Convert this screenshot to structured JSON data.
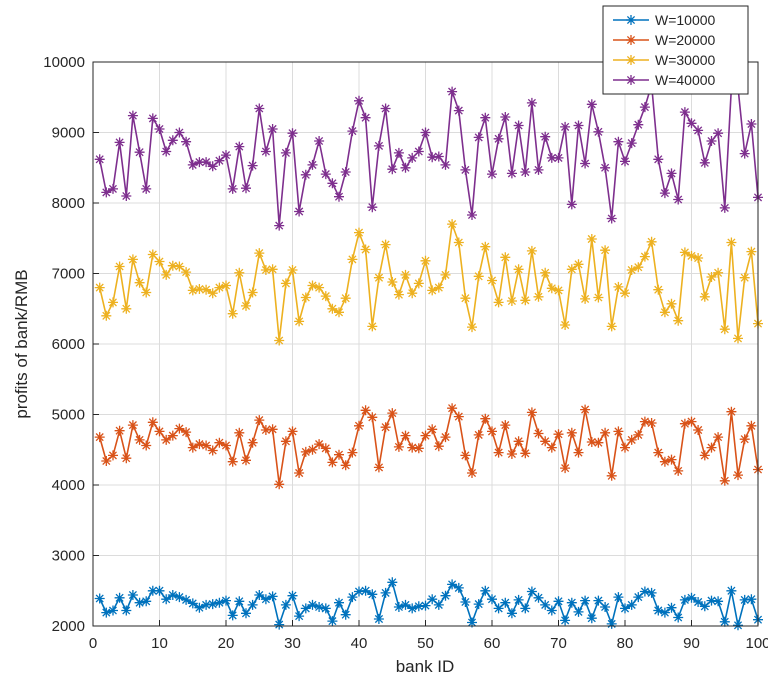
{
  "chart_data": {
    "type": "line",
    "title": "",
    "xlabel": "bank ID",
    "ylabel": "profits of bank/RMB",
    "xlim": [
      0,
      100
    ],
    "ylim": [
      2000,
      10000
    ],
    "xticks": [
      0,
      10,
      20,
      30,
      40,
      50,
      60,
      70,
      80,
      90,
      100
    ],
    "yticks": [
      2000,
      3000,
      4000,
      5000,
      6000,
      7000,
      8000,
      9000,
      10000
    ],
    "grid": true,
    "legend_position": "top-right",
    "marker": "asterisk",
    "x": [
      1,
      2,
      3,
      4,
      5,
      6,
      7,
      8,
      9,
      10,
      11,
      12,
      13,
      14,
      15,
      16,
      17,
      18,
      19,
      20,
      21,
      22,
      23,
      24,
      25,
      26,
      27,
      28,
      29,
      30,
      31,
      32,
      33,
      34,
      35,
      36,
      37,
      38,
      39,
      40,
      41,
      42,
      43,
      44,
      45,
      46,
      47,
      48,
      49,
      50,
      51,
      52,
      53,
      54,
      55,
      56,
      57,
      58,
      59,
      60,
      61,
      62,
      63,
      64,
      65,
      66,
      67,
      68,
      69,
      70,
      71,
      72,
      73,
      74,
      75,
      76,
      77,
      78,
      79,
      80,
      81,
      82,
      83,
      84,
      85,
      86,
      87,
      88,
      89,
      90,
      91,
      92,
      93,
      94,
      95,
      96,
      97,
      98,
      99,
      100
    ],
    "series": [
      {
        "name": "W=10000",
        "color": "#0072bd",
        "values": [
          2390,
          2190,
          2220,
          2400,
          2220,
          2440,
          2330,
          2350,
          2500,
          2500,
          2380,
          2440,
          2410,
          2370,
          2320,
          2260,
          2300,
          2310,
          2330,
          2360,
          2150,
          2350,
          2180,
          2300,
          2440,
          2380,
          2420,
          2020,
          2300,
          2430,
          2140,
          2250,
          2300,
          2270,
          2250,
          2070,
          2330,
          2160,
          2410,
          2490,
          2500,
          2450,
          2100,
          2470,
          2620,
          2270,
          2300,
          2250,
          2280,
          2290,
          2380,
          2300,
          2430,
          2590,
          2540,
          2340,
          2050,
          2310,
          2500,
          2380,
          2250,
          2330,
          2180,
          2370,
          2250,
          2490,
          2400,
          2300,
          2220,
          2350,
          2080,
          2330,
          2200,
          2360,
          2110,
          2360,
          2270,
          2030,
          2410,
          2250,
          2300,
          2410,
          2490,
          2470,
          2220,
          2190,
          2260,
          2120,
          2370,
          2400,
          2340,
          2280,
          2360,
          2350,
          2060,
          2500,
          2010,
          2370,
          2380,
          2090
        ]
      },
      {
        "name": "W=20000",
        "color": "#d95319",
        "values": [
          4680,
          4340,
          4420,
          4770,
          4380,
          4850,
          4640,
          4560,
          4890,
          4760,
          4640,
          4700,
          4800,
          4750,
          4530,
          4580,
          4560,
          4490,
          4600,
          4560,
          4330,
          4740,
          4350,
          4600,
          4920,
          4780,
          4790,
          4010,
          4620,
          4760,
          4170,
          4470,
          4500,
          4580,
          4520,
          4320,
          4430,
          4280,
          4460,
          4840,
          5060,
          4960,
          4250,
          4820,
          5020,
          4540,
          4700,
          4530,
          4520,
          4700,
          4790,
          4550,
          4680,
          5090,
          4970,
          4420,
          4170,
          4710,
          4940,
          4760,
          4460,
          4850,
          4440,
          4620,
          4450,
          5030,
          4730,
          4620,
          4530,
          4720,
          4240,
          4740,
          4460,
          5070,
          4610,
          4600,
          4740,
          4130,
          4760,
          4530,
          4640,
          4710,
          4900,
          4880,
          4460,
          4330,
          4360,
          4200,
          4870,
          4900,
          4780,
          4420,
          4530,
          4680,
          4060,
          5040,
          4140,
          4650,
          4840,
          4220
        ]
      },
      {
        "name": "W=30000",
        "color": "#edb120",
        "values": [
          6800,
          6400,
          6590,
          7100,
          6500,
          7200,
          6870,
          6730,
          7270,
          7170,
          6980,
          7110,
          7100,
          7020,
          6760,
          6780,
          6770,
          6720,
          6800,
          6830,
          6430,
          7010,
          6540,
          6730,
          7290,
          7050,
          7060,
          6050,
          6860,
          7050,
          6320,
          6660,
          6830,
          6800,
          6680,
          6500,
          6450,
          6650,
          7200,
          7580,
          7340,
          6250,
          6940,
          7410,
          6880,
          6700,
          6980,
          6720,
          6860,
          7180,
          6760,
          6800,
          6980,
          7700,
          7440,
          6650,
          6240,
          6960,
          7380,
          6900,
          6590,
          7230,
          6610,
          7060,
          6620,
          7320,
          6670,
          7010,
          6790,
          6760,
          6270,
          7060,
          7130,
          6640,
          7490,
          6660,
          7330,
          6250,
          6810,
          6720,
          7050,
          7090,
          7240,
          7450,
          6770,
          6450,
          6570,
          6330,
          7300,
          7250,
          7220,
          6670,
          6950,
          7010,
          6210,
          7440,
          6080,
          6940,
          7310,
          6290
        ]
      },
      {
        "name": "W=40000",
        "color": "#7e2f8e",
        "values": [
          8620,
          8150,
          8200,
          8860,
          8100,
          9240,
          8720,
          8200,
          9200,
          9050,
          8730,
          8890,
          9000,
          8870,
          8540,
          8580,
          8580,
          8520,
          8600,
          8680,
          8200,
          8800,
          8210,
          8530,
          9340,
          8730,
          9050,
          7680,
          8710,
          8990,
          7880,
          8400,
          8540,
          8880,
          8410,
          8280,
          8090,
          8440,
          9020,
          9450,
          9210,
          7940,
          8810,
          9340,
          8480,
          8710,
          8500,
          8640,
          8730,
          9000,
          8650,
          8660,
          8540,
          9580,
          9310,
          8470,
          7830,
          8930,
          9210,
          8410,
          8910,
          9220,
          8420,
          9100,
          8440,
          9420,
          8470,
          8940,
          8640,
          8640,
          9080,
          7980,
          9100,
          8560,
          9400,
          9010,
          8500,
          7780,
          8870,
          8590,
          8850,
          9110,
          9360,
          9680,
          8620,
          8140,
          8420,
          8050,
          9290,
          9130,
          9030,
          8570,
          8880,
          8990,
          7930,
          9640,
          9640,
          8700,
          9120,
          8080
        ]
      }
    ]
  }
}
